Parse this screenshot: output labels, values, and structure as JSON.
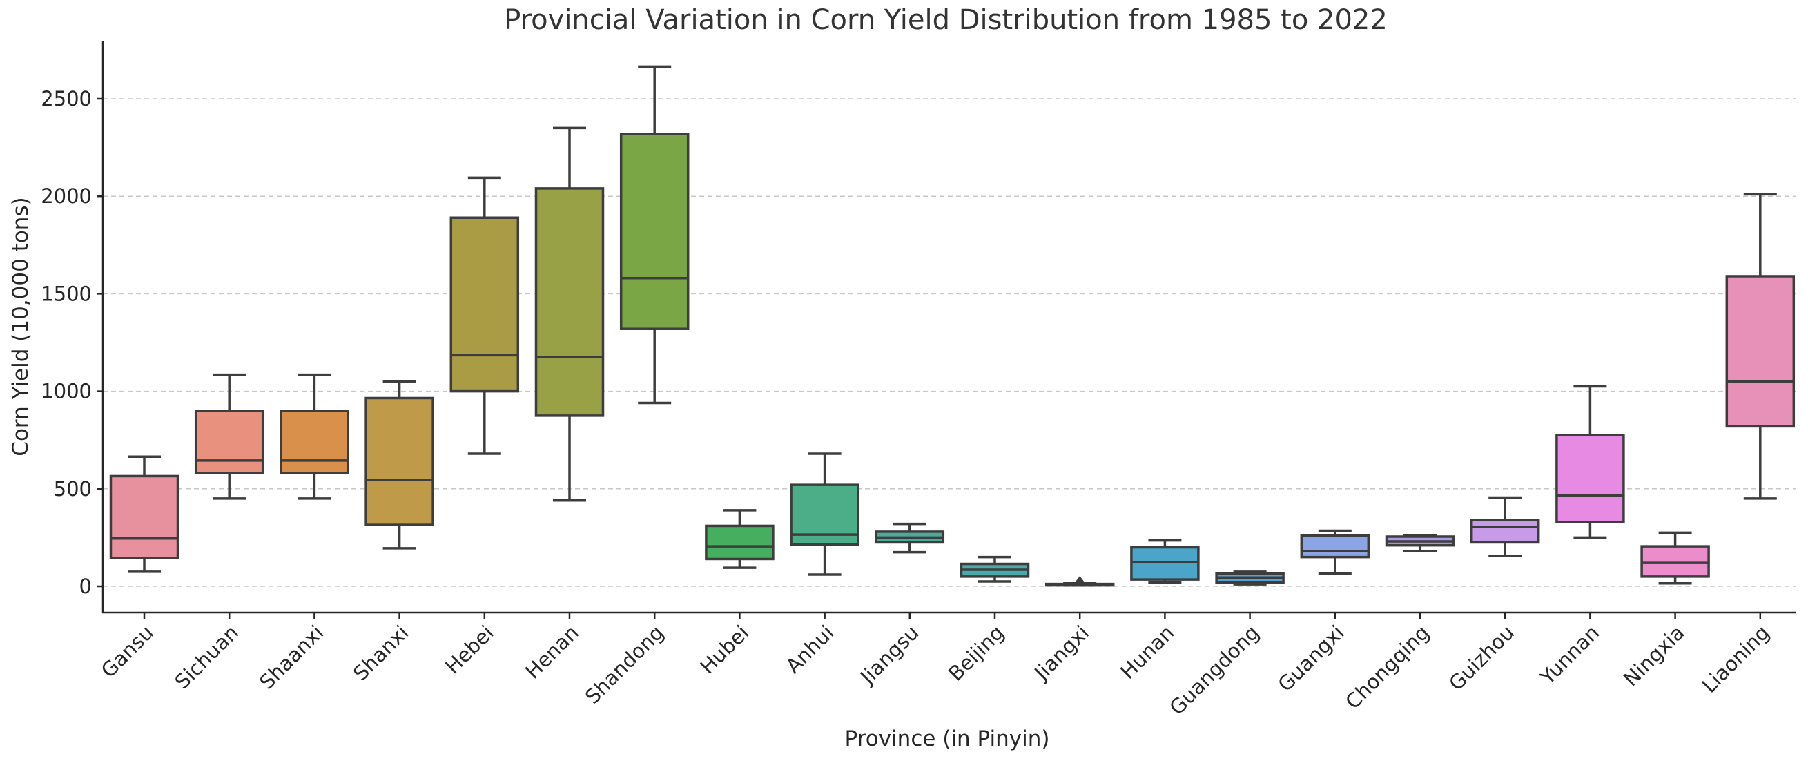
{
  "chart_data": {
    "type": "box",
    "title": "Provincial Variation in Corn Yield Distribution from 1985 to 2022",
    "xlabel": "Province (in Pinyin)",
    "ylabel": "Corn Yield (10,000 tons)",
    "ylim": [
      -130,
      2800
    ],
    "yticks": [
      0,
      500,
      1000,
      1500,
      2000,
      2500
    ],
    "grid": "horizontal dashed",
    "series": [
      {
        "name": "Gansu",
        "color": "#e8919e",
        "whisker_low": 75,
        "q1": 145,
        "median": 245,
        "q3": 565,
        "whisker_high": 665
      },
      {
        "name": "Sichuan",
        "color": "#e8917f",
        "whisker_low": 450,
        "q1": 580,
        "median": 645,
        "q3": 900,
        "whisker_high": 1085
      },
      {
        "name": "Shaanxi",
        "color": "#d9904a",
        "whisker_low": 450,
        "q1": 580,
        "median": 645,
        "q3": 900,
        "whisker_high": 1085
      },
      {
        "name": "Shanxi",
        "color": "#bf9a48",
        "whisker_low": 195,
        "q1": 315,
        "median": 545,
        "q3": 965,
        "whisker_high": 1050
      },
      {
        "name": "Hebei",
        "color": "#aa9c44",
        "whisker_low": 680,
        "q1": 1000,
        "median": 1185,
        "q3": 1890,
        "whisker_high": 2095
      },
      {
        "name": "Henan",
        "color": "#99a146",
        "whisker_low": 440,
        "q1": 875,
        "median": 1175,
        "q3": 2040,
        "whisker_high": 2350
      },
      {
        "name": "Shandong",
        "color": "#7ba645",
        "whisker_low": 940,
        "q1": 1320,
        "median": 1580,
        "q3": 2320,
        "whisker_high": 2665
      },
      {
        "name": "Hubei",
        "color": "#46af5f",
        "whisker_low": 95,
        "q1": 140,
        "median": 205,
        "q3": 310,
        "whisker_high": 390
      },
      {
        "name": "Anhui",
        "color": "#4cae88",
        "whisker_low": 60,
        "q1": 215,
        "median": 265,
        "q3": 520,
        "whisker_high": 680
      },
      {
        "name": "Jiangsu",
        "color": "#4aab9b",
        "whisker_low": 175,
        "q1": 225,
        "median": 250,
        "q3": 280,
        "whisker_high": 320
      },
      {
        "name": "Beijing",
        "color": "#4aa9a9",
        "whisker_low": 25,
        "q1": 50,
        "median": 85,
        "q3": 115,
        "whisker_high": 150
      },
      {
        "name": "Jiangxi",
        "color": "#4ba6b5",
        "whisker_low": 5,
        "q1": 5,
        "median": 8,
        "q3": 12,
        "whisker_high": 15,
        "outliers": [
          25
        ]
      },
      {
        "name": "Hunan",
        "color": "#4aa5c8",
        "whisker_low": 20,
        "q1": 35,
        "median": 125,
        "q3": 200,
        "whisker_high": 235
      },
      {
        "name": "Guangdong",
        "color": "#57a3d6",
        "whisker_low": 10,
        "q1": 20,
        "median": 45,
        "q3": 65,
        "whisker_high": 75
      },
      {
        "name": "Guangxi",
        "color": "#8ba4e6",
        "whisker_low": 65,
        "q1": 150,
        "median": 180,
        "q3": 260,
        "whisker_high": 285
      },
      {
        "name": "Chongqing",
        "color": "#a89ae3",
        "whisker_low": 180,
        "q1": 210,
        "median": 230,
        "q3": 255,
        "whisker_high": 260
      },
      {
        "name": "Guizhou",
        "color": "#c89be8",
        "whisker_low": 155,
        "q1": 225,
        "median": 305,
        "q3": 340,
        "whisker_high": 455
      },
      {
        "name": "Yunnan",
        "color": "#e68ae3",
        "whisker_low": 250,
        "q1": 330,
        "median": 465,
        "q3": 775,
        "whisker_high": 1025
      },
      {
        "name": "Ningxia",
        "color": "#eb8dcb",
        "whisker_low": 15,
        "q1": 50,
        "median": 120,
        "q3": 205,
        "whisker_high": 275
      },
      {
        "name": "Liaoning",
        "color": "#e891b8",
        "whisker_low": 450,
        "q1": 820,
        "median": 1050,
        "q3": 1590,
        "whisker_high": 2010
      }
    ]
  }
}
